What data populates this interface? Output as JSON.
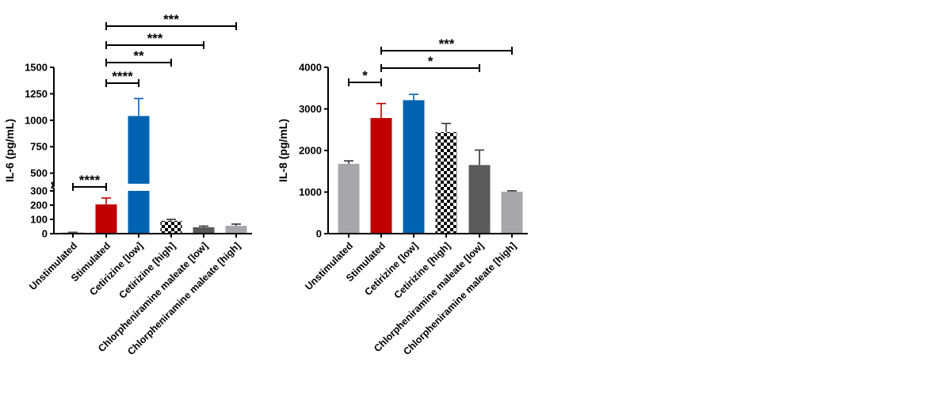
{
  "chart_data": [
    {
      "type": "bar",
      "ylabel": "IL-6 (pg/mL)",
      "categories": [
        "Unstimulated",
        "Stimulated",
        "Cetirizine [low]",
        "Cetirizine [high]",
        "Chlorpheniramine maleate [low]",
        "Chlorpheniramine maleate [high]"
      ],
      "values": [
        8,
        205,
        1040,
        90,
        45,
        55
      ],
      "errors": [
        2,
        45,
        165,
        10,
        8,
        12
      ],
      "colors": [
        "#a6a6ab",
        "#c00000",
        "#0063b1",
        "checker",
        "#5a5a5a",
        "#a6a6ab"
      ],
      "error_colors": [
        "#555555",
        "#c00000",
        "#0063b1",
        "#333333",
        "#333333",
        "#333333"
      ],
      "y_broken_axis": {
        "lower_range": [
          0,
          300
        ],
        "lower_ticks": [
          0,
          100,
          200,
          300
        ],
        "upper_range": [
          400,
          1500
        ],
        "upper_ticks": [
          500,
          750,
          1000,
          1250,
          1500
        ]
      },
      "tick_labels": [
        "0",
        "100",
        "200",
        "300",
        "500",
        "750",
        "1000",
        "1250",
        "1500"
      ],
      "significance": [
        {
          "from": 0,
          "to": 1,
          "label": "****"
        },
        {
          "from": 1,
          "to": 2,
          "label": "****"
        },
        {
          "from": 1,
          "to": 3,
          "label": "**"
        },
        {
          "from": 1,
          "to": 4,
          "label": "***"
        },
        {
          "from": 1,
          "to": 5,
          "label": "***"
        }
      ]
    },
    {
      "type": "bar",
      "ylabel": "IL-8 (pg/mL)",
      "categories": [
        "Unstimulated",
        "Stimulated",
        "Cetirizine [low]",
        "Cetirizine [high]",
        "Chlorpheniramine maleate [low]",
        "Chlorpheniramine maleate [high]"
      ],
      "values": [
        1680,
        2780,
        3210,
        2440,
        1650,
        1010
      ],
      "errors": [
        70,
        350,
        140,
        210,
        360,
        20
      ],
      "colors": [
        "#a6a6ab",
        "#c00000",
        "#0063b1",
        "checker",
        "#5a5a5a",
        "#a6a6ab"
      ],
      "error_colors": [
        "#333333",
        "#c00000",
        "#0063b1",
        "#333333",
        "#333333",
        "#333333"
      ],
      "ylim": [
        0,
        4000
      ],
      "ticks": [
        0,
        1000,
        2000,
        3000,
        4000
      ],
      "tick_labels": [
        "0",
        "1000",
        "2000",
        "3000",
        "4000"
      ],
      "significance": [
        {
          "from": 0,
          "to": 1,
          "label": "*"
        },
        {
          "from": 1,
          "to": 4,
          "label": "*"
        },
        {
          "from": 1,
          "to": 5,
          "label": "***"
        }
      ]
    }
  ]
}
